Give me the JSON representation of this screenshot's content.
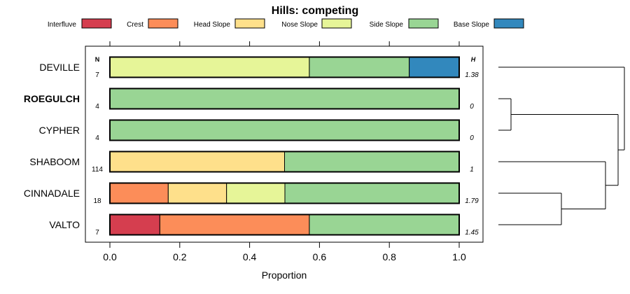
{
  "chart_data": {
    "type": "bar",
    "orientation": "horizontal",
    "stacked": true,
    "title": "Hills: competing",
    "xlabel": "Proportion",
    "ylabel": "",
    "xlim": [
      0,
      1
    ],
    "xticks": [
      "0.0",
      "0.2",
      "0.4",
      "0.6",
      "0.8",
      "1.0"
    ],
    "xtick_values": [
      0,
      0.2,
      0.4,
      0.6,
      0.8,
      1.0
    ],
    "legend_position": "top",
    "legend": [
      {
        "name": "Interfluve",
        "color": "#d53e4f"
      },
      {
        "name": "Crest",
        "color": "#fc8d59"
      },
      {
        "name": "Head Slope",
        "color": "#fee08b"
      },
      {
        "name": "Nose Slope",
        "color": "#e6f598"
      },
      {
        "name": "Side Slope",
        "color": "#99d594"
      },
      {
        "name": "Base Slope",
        "color": "#3288bd"
      }
    ],
    "n_header": "N",
    "h_header": "H",
    "categories": [
      "DEVILLE",
      "ROEGULCH",
      "CYPHER",
      "SHABOOM",
      "CINNADALE",
      "VALTO"
    ],
    "bold_category": "ROEGULCH",
    "n": [
      "7",
      "4",
      "4",
      "114",
      "18",
      "7"
    ],
    "h": [
      "1.38",
      "0",
      "0",
      "1",
      "1.79",
      "1.45"
    ],
    "series": [
      {
        "name": "Interfluve",
        "values": [
          0,
          0,
          0,
          0,
          0,
          0.143
        ]
      },
      {
        "name": "Crest",
        "values": [
          0,
          0,
          0,
          0,
          0.167,
          0.428
        ]
      },
      {
        "name": "Head Slope",
        "values": [
          0,
          0,
          0,
          0.5,
          0.167,
          0
        ]
      },
      {
        "name": "Nose Slope",
        "values": [
          0.571,
          0,
          0,
          0,
          0.167,
          0
        ]
      },
      {
        "name": "Side Slope",
        "values": [
          0.286,
          1,
          1,
          0.5,
          0.499,
          0.429
        ]
      },
      {
        "name": "Base Slope",
        "values": [
          0.143,
          0,
          0,
          0,
          0,
          0
        ]
      }
    ],
    "dendrogram": {
      "merges": [
        {
          "left": "ROEGULCH",
          "right": "CYPHER",
          "height": 0.1
        },
        {
          "left": "CINNADALE",
          "right": "VALTO",
          "height": 0.5
        },
        {
          "left": "SHABOOM",
          "right": "CINNADALE+VALTO",
          "height": 0.85
        },
        {
          "left": "ROEGULCH+CYPHER",
          "right": "SHABOOM+CINNADALE+VALTO",
          "height": 0.95
        },
        {
          "left": "DEVILLE",
          "right": "rest",
          "height": 1.0
        }
      ]
    }
  }
}
